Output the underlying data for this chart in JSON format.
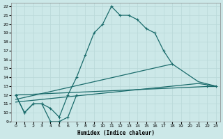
{
  "xlabel": "Humidex (Indice chaleur)",
  "bg_color": "#cce8e8",
  "line_color": "#1a6b6b",
  "grid_color": "#b8d8d8",
  "xlim": [
    -0.5,
    23.5
  ],
  "ylim": [
    9,
    22.4
  ],
  "xticks": [
    0,
    1,
    2,
    3,
    4,
    5,
    6,
    7,
    8,
    9,
    10,
    11,
    12,
    13,
    14,
    15,
    16,
    17,
    18,
    19,
    20,
    21,
    22,
    23
  ],
  "yticks": [
    9,
    10,
    11,
    12,
    13,
    14,
    15,
    16,
    17,
    18,
    19,
    20,
    21,
    22
  ],
  "curve_main": {
    "x": [
      0,
      1,
      2,
      3,
      4,
      5,
      6,
      7,
      8,
      9,
      10,
      11,
      12,
      13,
      14,
      15,
      16,
      17,
      18
    ],
    "y": [
      12,
      10,
      11,
      11,
      10.5,
      9.5,
      12,
      14,
      16.5,
      19,
      20,
      22,
      21,
      21,
      20.5,
      19.5,
      19,
      17,
      15.5
    ]
  },
  "curve_secondary": {
    "x": [
      0,
      1,
      2,
      3,
      4,
      5,
      6,
      7,
      22,
      23
    ],
    "y": [
      12,
      10,
      11,
      11,
      9,
      9,
      9.5,
      12,
      13,
      13
    ]
  },
  "line1": {
    "x": [
      0,
      23
    ],
    "y": [
      12,
      13
    ]
  },
  "line2": {
    "x": [
      0,
      18,
      21,
      23
    ],
    "y": [
      11.5,
      15.5,
      13.5,
      13
    ]
  },
  "line3": {
    "x": [
      0,
      21,
      23
    ],
    "y": [
      11.2,
      13.3,
      13
    ]
  }
}
